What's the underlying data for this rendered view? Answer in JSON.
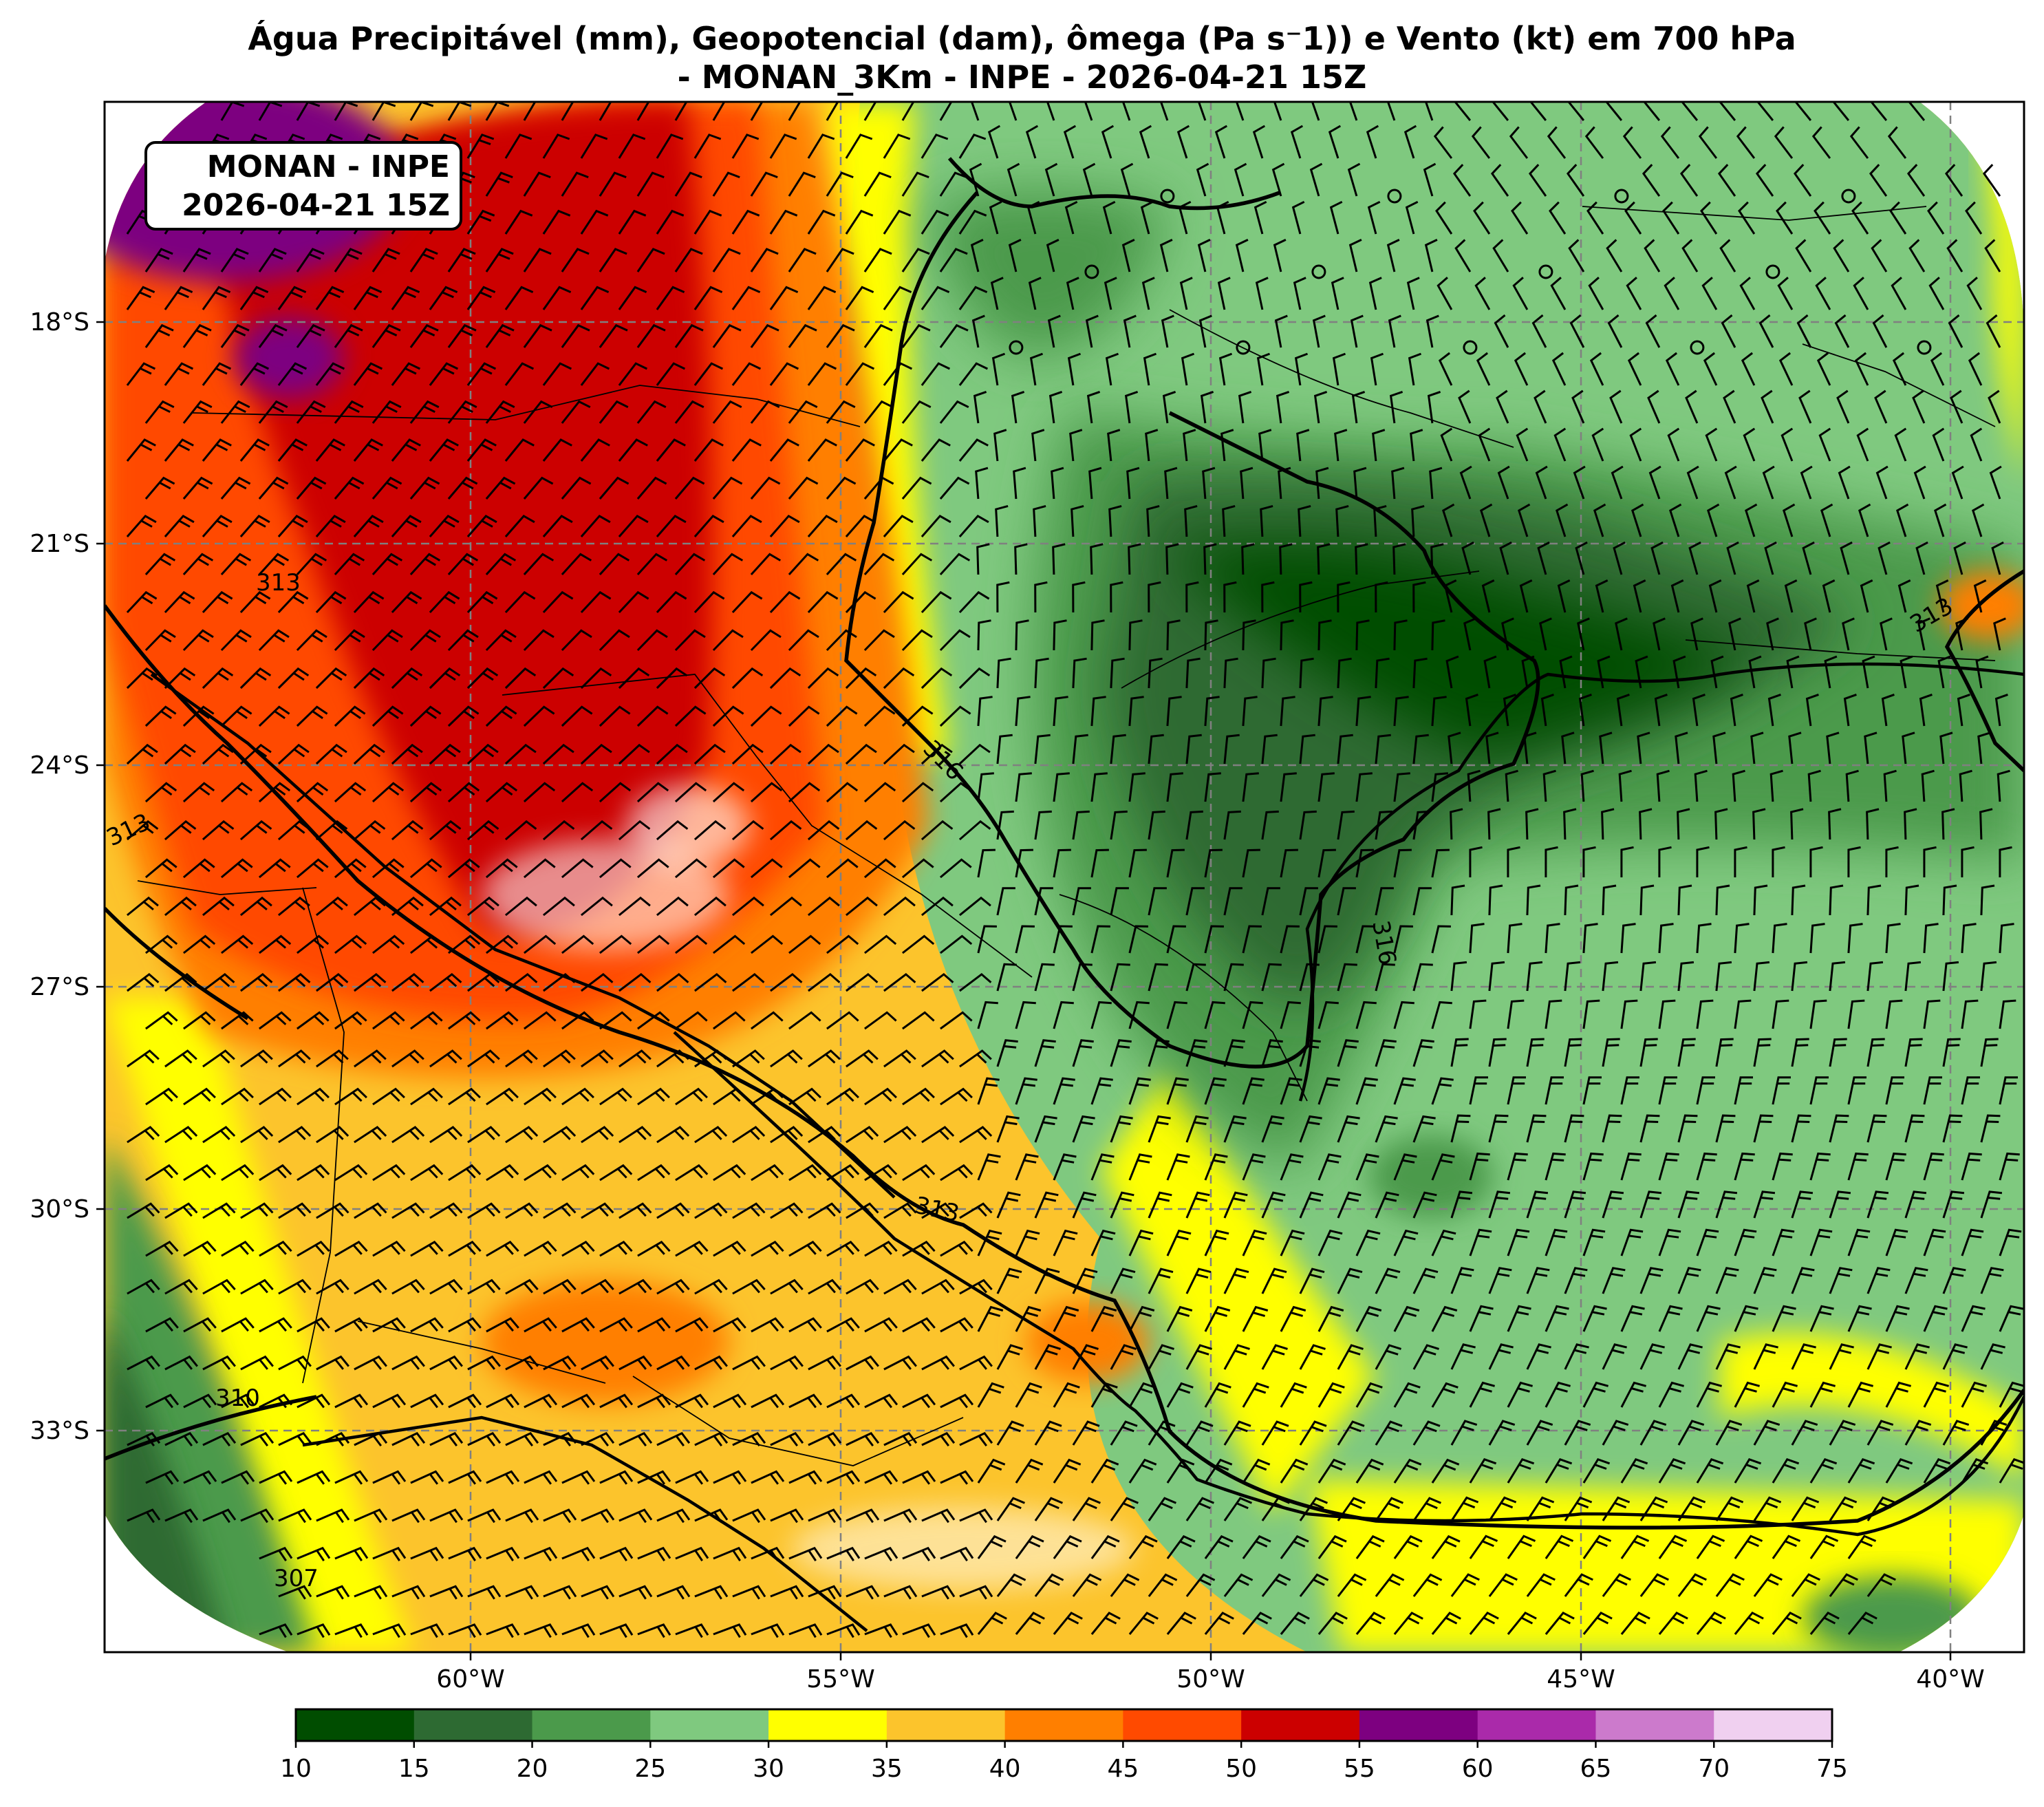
{
  "title": {
    "line1": "Água Precipitável (mm), Geopotencial (dam), ômega (Pa s⁻1)) e Vento (kt) em 700 hPa",
    "line2": "- MONAN_3Km - INPE - 2026-04-21 15Z"
  },
  "badge": {
    "line1": "MONAN - INPE",
    "line2": "2026-04-21 15Z"
  },
  "latitude_labels": [
    "18°S",
    "21°S",
    "24°S",
    "27°S",
    "30°S",
    "33°S"
  ],
  "longitude_labels": [
    "60°W",
    "55°W",
    "50°W",
    "45°W",
    "40°W"
  ],
  "colorbar": {
    "ticks": [
      "10",
      "15",
      "20",
      "25",
      "30",
      "35",
      "40",
      "45",
      "50",
      "55",
      "60",
      "65",
      "70",
      "75"
    ],
    "colors": [
      "#004d00",
      "#2d6a32",
      "#4b9a4b",
      "#7fc97f",
      "#ffff00",
      "#fcc42c",
      "#ff7f00",
      "#ff4a00",
      "#cc0000",
      "#7d0080",
      "#aa2aaa",
      "#cc7acc",
      "#f0d0f0"
    ]
  },
  "contour_labels": [
    "313",
    "313",
    "313",
    "313",
    "316",
    "316",
    "310",
    "307"
  ]
}
